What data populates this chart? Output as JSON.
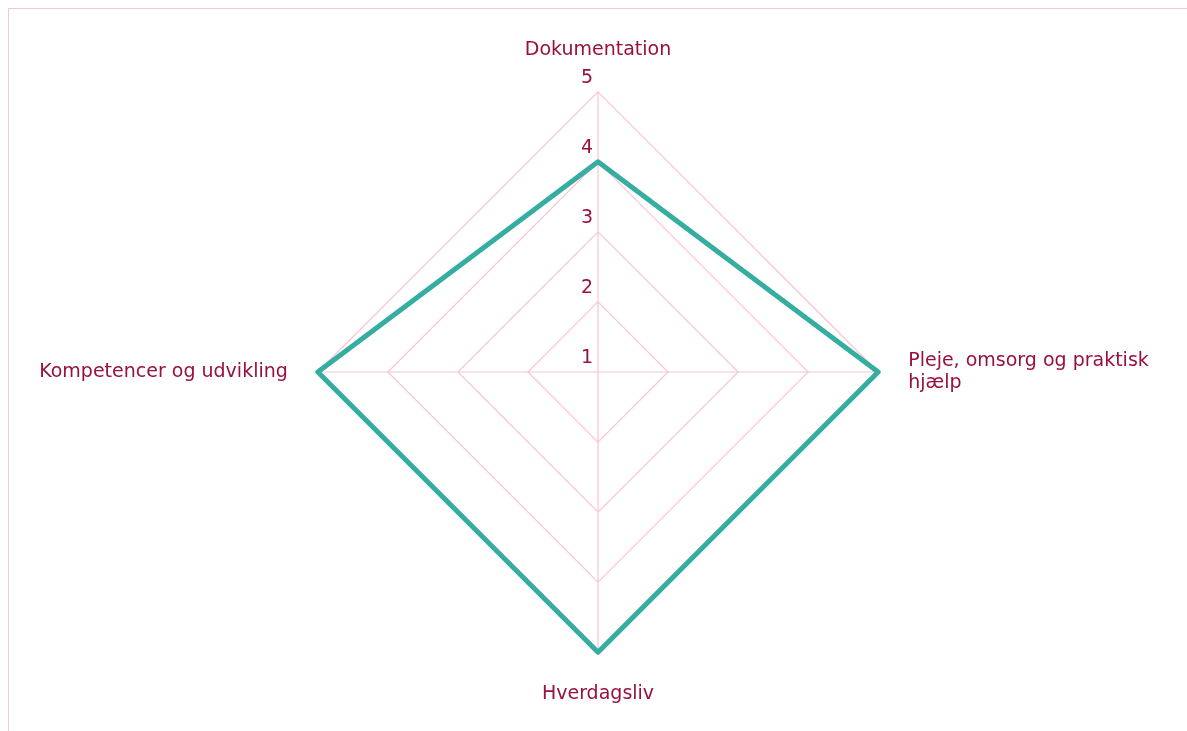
{
  "chart_data": {
    "type": "radar",
    "categories": [
      "Dokumentation",
      "Pleje, omsorg og praktisk hjælp",
      "Hverdagsliv",
      "Kompetencer og udvikling"
    ],
    "series": [
      {
        "color": "#35ada0",
        "values": [
          4,
          5,
          5,
          5
        ]
      }
    ],
    "ylim": [
      1,
      5
    ],
    "yticks": [
      1,
      2,
      3,
      4,
      5
    ],
    "grid": true,
    "marker": "none",
    "legend": false
  }
}
